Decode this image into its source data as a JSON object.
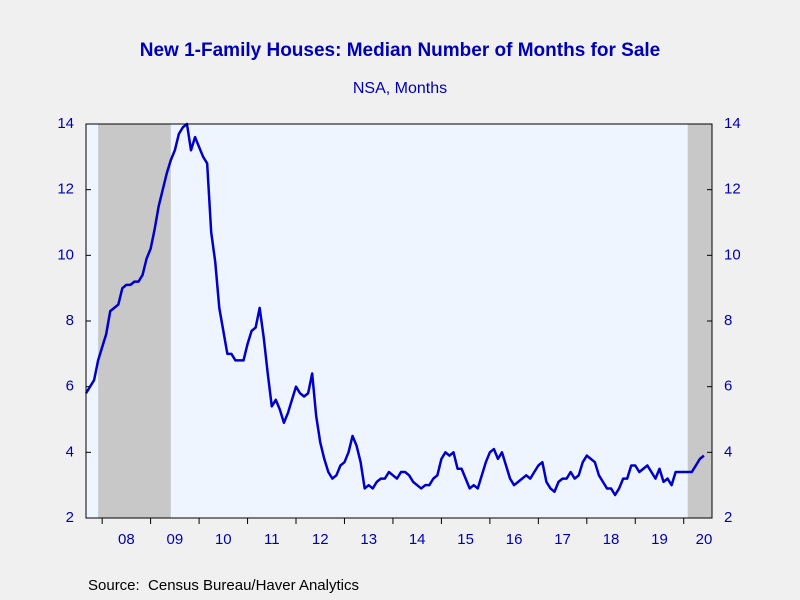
{
  "chart_data": {
    "type": "line",
    "title": "New 1-Family Houses: Median Number of Months for Sale",
    "subtitle": "NSA, Months",
    "source": "Source:  Census Bureau/Haver Analytics",
    "x": [
      "2007-09",
      "2007-10",
      "2007-11",
      "2007-12",
      "2008-01",
      "2008-02",
      "2008-03",
      "2008-04",
      "2008-05",
      "2008-06",
      "2008-07",
      "2008-08",
      "2008-09",
      "2008-10",
      "2008-11",
      "2008-12",
      "2009-01",
      "2009-02",
      "2009-03",
      "2009-04",
      "2009-05",
      "2009-06",
      "2009-07",
      "2009-08",
      "2009-09",
      "2009-10",
      "2009-11",
      "2009-12",
      "2010-01",
      "2010-02",
      "2010-03",
      "2010-04",
      "2010-05",
      "2010-06",
      "2010-07",
      "2010-08",
      "2010-09",
      "2010-10",
      "2010-11",
      "2010-12",
      "2011-01",
      "2011-02",
      "2011-03",
      "2011-04",
      "2011-05",
      "2011-06",
      "2011-07",
      "2011-08",
      "2011-09",
      "2011-10",
      "2011-11",
      "2011-12",
      "2012-01",
      "2012-02",
      "2012-03",
      "2012-04",
      "2012-05",
      "2012-06",
      "2012-07",
      "2012-08",
      "2012-09",
      "2012-10",
      "2012-11",
      "2012-12",
      "2013-01",
      "2013-02",
      "2013-03",
      "2013-04",
      "2013-05",
      "2013-06",
      "2013-07",
      "2013-08",
      "2013-09",
      "2013-10",
      "2013-11",
      "2013-12",
      "2014-01",
      "2014-02",
      "2014-03",
      "2014-04",
      "2014-05",
      "2014-06",
      "2014-07",
      "2014-08",
      "2014-09",
      "2014-10",
      "2014-11",
      "2014-12",
      "2015-01",
      "2015-02",
      "2015-03",
      "2015-04",
      "2015-05",
      "2015-06",
      "2015-07",
      "2015-08",
      "2015-09",
      "2015-10",
      "2015-11",
      "2015-12",
      "2016-01",
      "2016-02",
      "2016-03",
      "2016-04",
      "2016-05",
      "2016-06",
      "2016-07",
      "2016-08",
      "2016-09",
      "2016-10",
      "2016-11",
      "2016-12",
      "2017-01",
      "2017-02",
      "2017-03",
      "2017-04",
      "2017-05",
      "2017-06",
      "2017-07",
      "2017-08",
      "2017-09",
      "2017-10",
      "2017-11",
      "2017-12",
      "2018-01",
      "2018-02",
      "2018-03",
      "2018-04",
      "2018-05",
      "2018-06",
      "2018-07",
      "2018-08",
      "2018-09",
      "2018-10",
      "2018-11",
      "2018-12",
      "2019-01",
      "2019-02",
      "2019-03",
      "2019-04",
      "2019-05",
      "2019-06",
      "2019-07",
      "2019-08",
      "2019-09",
      "2019-10",
      "2019-11",
      "2019-12",
      "2020-01",
      "2020-02",
      "2020-03",
      "2020-04",
      "2020-05",
      "2020-06"
    ],
    "series": [
      {
        "color": "#0000c8",
        "values": [
          5.8,
          6.0,
          6.2,
          6.8,
          7.2,
          7.6,
          8.3,
          8.4,
          8.5,
          9.0,
          9.1,
          9.1,
          9.2,
          9.2,
          9.4,
          9.9,
          10.2,
          10.8,
          11.5,
          12.0,
          12.5,
          12.9,
          13.2,
          13.7,
          13.9,
          14.0,
          13.2,
          13.6,
          13.3,
          13.0,
          12.8,
          10.7,
          9.8,
          8.4,
          7.7,
          7.0,
          7.0,
          6.8,
          6.8,
          6.8,
          7.3,
          7.7,
          7.8,
          8.4,
          7.5,
          6.4,
          5.4,
          5.6,
          5.3,
          4.9,
          5.2,
          5.6,
          6.0,
          5.8,
          5.7,
          5.8,
          6.4,
          5.1,
          4.3,
          3.8,
          3.4,
          3.2,
          3.3,
          3.6,
          3.7,
          4.0,
          4.5,
          4.2,
          3.7,
          2.9,
          3.0,
          2.9,
          3.1,
          3.2,
          3.2,
          3.4,
          3.3,
          3.2,
          3.4,
          3.4,
          3.3,
          3.1,
          3.0,
          2.9,
          3.0,
          3.0,
          3.2,
          3.3,
          3.8,
          4.0,
          3.9,
          4.0,
          3.5,
          3.5,
          3.2,
          2.9,
          3.0,
          2.9,
          3.3,
          3.7,
          4.0,
          4.1,
          3.8,
          4.0,
          3.6,
          3.2,
          3.0,
          3.1,
          3.2,
          3.3,
          3.2,
          3.4,
          3.6,
          3.7,
          3.1,
          2.9,
          2.8,
          3.1,
          3.2,
          3.2,
          3.4,
          3.2,
          3.3,
          3.7,
          3.9,
          3.8,
          3.7,
          3.3,
          3.1,
          2.9,
          2.9,
          2.7,
          2.9,
          3.2,
          3.2,
          3.6,
          3.6,
          3.4,
          3.5,
          3.6,
          3.4,
          3.2,
          3.5,
          3.1,
          3.2,
          3.0,
          3.4,
          3.4,
          3.4,
          3.4,
          3.4,
          3.6,
          3.8,
          3.9
        ]
      }
    ],
    "shaded": [
      {
        "start": "2007-12",
        "end": "2009-06"
      },
      {
        "start": "2020-02",
        "end": "2020-08"
      }
    ],
    "xlim": [
      "2007-09",
      "2020-08"
    ],
    "xticks": [
      {
        "value": "2008-01",
        "label": "08"
      },
      {
        "value": "2009-01",
        "label": "09"
      },
      {
        "value": "2010-01",
        "label": "10"
      },
      {
        "value": "2011-01",
        "label": "11"
      },
      {
        "value": "2012-01",
        "label": "12"
      },
      {
        "value": "2013-01",
        "label": "13"
      },
      {
        "value": "2014-01",
        "label": "14"
      },
      {
        "value": "2015-01",
        "label": "15"
      },
      {
        "value": "2016-01",
        "label": "16"
      },
      {
        "value": "2017-01",
        "label": "17"
      },
      {
        "value": "2018-01",
        "label": "18"
      },
      {
        "value": "2019-01",
        "label": "19"
      },
      {
        "value": "2020-01",
        "label": "20"
      }
    ],
    "ylim": [
      2,
      14
    ],
    "yticks": [
      2,
      4,
      6,
      8,
      10,
      12,
      14
    ],
    "y2lim": [
      2,
      14
    ],
    "y2ticks": [
      2,
      4,
      6,
      8,
      10,
      12,
      14
    ]
  }
}
